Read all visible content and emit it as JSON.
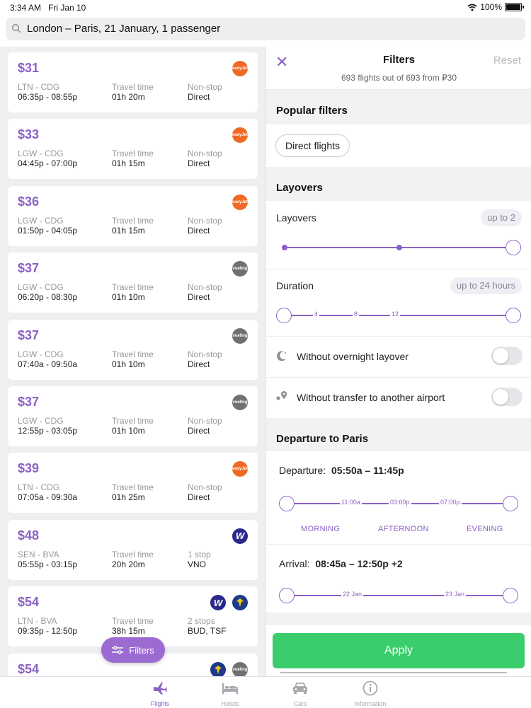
{
  "status": {
    "time": "3:34 AM",
    "date": "Fri Jan 10",
    "battery": "100%"
  },
  "search": {
    "text": "London – Paris, 21 January, 1 passenger"
  },
  "flights": [
    {
      "price": "$31",
      "route": "LTN - CDG",
      "times": "06:35p - 08:55p",
      "travel_label": "Travel time",
      "travel": "01h 20m",
      "stops_label": "Non-stop",
      "stops": "Direct",
      "logos": [
        "easyjet"
      ]
    },
    {
      "price": "$33",
      "route": "LGW - CDG",
      "times": "04:45p - 07:00p",
      "travel_label": "Travel time",
      "travel": "01h 15m",
      "stops_label": "Non-stop",
      "stops": "Direct",
      "logos": [
        "easyjet"
      ]
    },
    {
      "price": "$36",
      "route": "LGW - CDG",
      "times": "01:50p - 04:05p",
      "travel_label": "Travel time",
      "travel": "01h 15m",
      "stops_label": "Non-stop",
      "stops": "Direct",
      "logos": [
        "easyjet"
      ]
    },
    {
      "price": "$37",
      "route": "LGW - CDG",
      "times": "06:20p - 08:30p",
      "travel_label": "Travel time",
      "travel": "01h 10m",
      "stops_label": "Non-stop",
      "stops": "Direct",
      "logos": [
        "vueling"
      ]
    },
    {
      "price": "$37",
      "route": "LGW - CDG",
      "times": "07:40a - 09:50a",
      "travel_label": "Travel time",
      "travel": "01h 10m",
      "stops_label": "Non-stop",
      "stops": "Direct",
      "logos": [
        "vueling"
      ]
    },
    {
      "price": "$37",
      "route": "LGW - CDG",
      "times": "12:55p - 03:05p",
      "travel_label": "Travel time",
      "travel": "01h 10m",
      "stops_label": "Non-stop",
      "stops": "Direct",
      "logos": [
        "vueling"
      ]
    },
    {
      "price": "$39",
      "route": "LTN - CDG",
      "times": "07:05a - 09:30a",
      "travel_label": "Travel time",
      "travel": "01h 25m",
      "stops_label": "Non-stop",
      "stops": "Direct",
      "logos": [
        "easyjet"
      ]
    },
    {
      "price": "$48",
      "route": "SEN - BVA",
      "times": "05:55p - 03:15p",
      "travel_label": "Travel time",
      "travel": "20h 20m",
      "stops_label": "1 stop",
      "stops": "VNO",
      "logos": [
        "wizz"
      ]
    },
    {
      "price": "$54",
      "route": "LTN - BVA",
      "times": "09:35p - 12:50p",
      "travel_label": "Travel time",
      "travel": "38h 15m",
      "stops_label": "2 stops",
      "stops": "BUD, TSF",
      "logos": [
        "wizz",
        "ryanair"
      ]
    },
    {
      "price": "$54",
      "route": "",
      "times": "",
      "travel_label": "",
      "travel": "",
      "stops_label": "",
      "stops": "",
      "logos": [
        "ryanair",
        "vueling"
      ]
    }
  ],
  "logo_labels": {
    "easyjet": "easyJet",
    "vueling": "vueling",
    "wizz": "W",
    "ryanair": ""
  },
  "fab": {
    "label": "Filters",
    "icon": "sliders-icon"
  },
  "filters": {
    "title": "Filters",
    "reset": "Reset",
    "subtitle": "693 flights out of 693 from ₽30",
    "popular_heading": "Popular filters",
    "direct_chip": "Direct flights",
    "layovers_heading": "Layovers",
    "layovers_label": "Layovers",
    "layovers_value": "up to 2",
    "duration_label": "Duration",
    "duration_value": "up to 24 hours",
    "duration_ticks": [
      "4",
      "8",
      "12"
    ],
    "overnight_label": "Without overnight layover",
    "transfer_label": "Without transfer to another airport",
    "departure_heading": "Departure to Paris",
    "departure_label": "Departure:",
    "departure_value": "05:50a – 11:45p",
    "departure_ticks": [
      "11:00a",
      "03:00p",
      "07:00p"
    ],
    "periods": [
      "MORNING",
      "AFTERNOON",
      "EVENING"
    ],
    "arrival_label": "Arrival:",
    "arrival_value": "08:45a – 12:50p +2",
    "arrival_ticks": [
      "22 Jan",
      "23 Jan"
    ],
    "apply": "Apply"
  },
  "tabs": [
    {
      "label": "Flights",
      "icon": "plane-icon",
      "active": true
    },
    {
      "label": "Hotels",
      "icon": "bed-icon",
      "active": false
    },
    {
      "label": "Cars",
      "icon": "car-icon",
      "active": false
    },
    {
      "label": "Information",
      "icon": "info-icon",
      "active": false
    }
  ],
  "colors": {
    "accent": "#8b61c4",
    "apply": "#3bcc6b",
    "easyjet": "#ee6a25",
    "vueling": "#707070",
    "wizz": "#2a2a8c"
  }
}
